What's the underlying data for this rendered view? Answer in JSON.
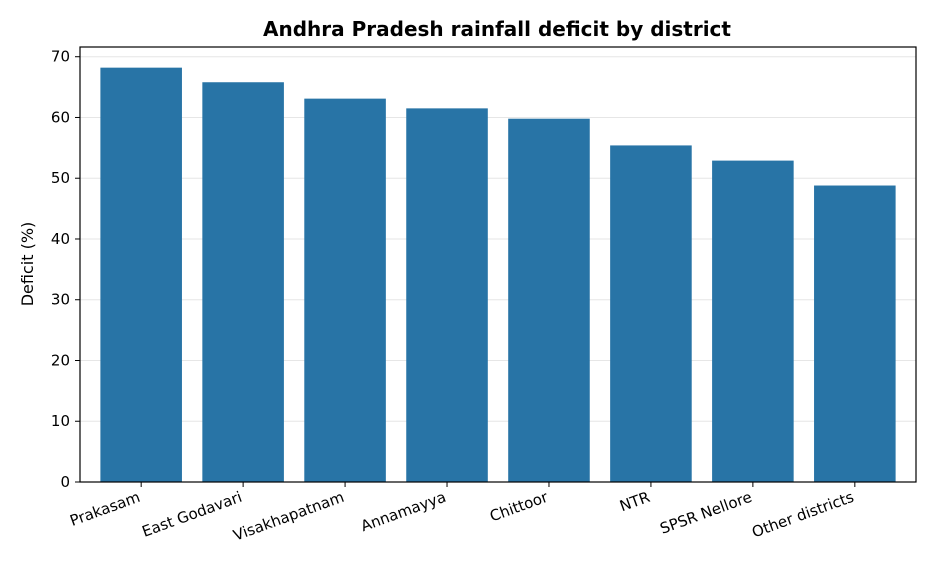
{
  "chart_data": {
    "type": "bar",
    "title": "Andhra Pradesh rainfall deficit by district",
    "xlabel": "",
    "ylabel": "Deficit (%)",
    "categories": [
      "Prakasam",
      "East Godavari",
      "Visakhapatnam",
      "Annamayya",
      "Chittoor",
      "NTR",
      "SPSR Nellore",
      "Other districts"
    ],
    "values": [
      68.2,
      65.8,
      63.1,
      61.5,
      59.8,
      55.4,
      52.9,
      48.8
    ],
    "ylim": [
      0,
      71.6
    ],
    "yticks": [
      0,
      10,
      20,
      30,
      40,
      50,
      60,
      70
    ],
    "grid": "y",
    "bar_color": "#2874a6",
    "grid_color": "#e6e6e6"
  }
}
